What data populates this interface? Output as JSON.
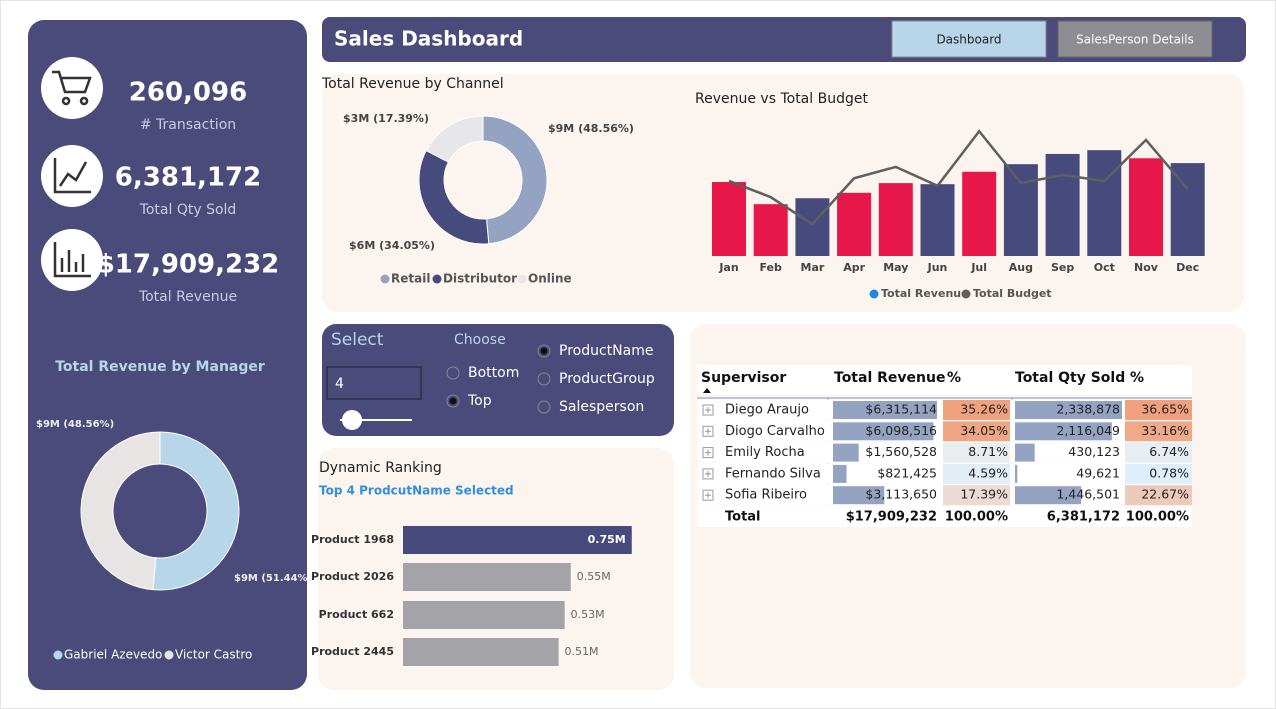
{
  "header": {
    "title": "Sales Dashboard",
    "buttons": [
      "Dashboard",
      "SalesPerson Details"
    ]
  },
  "kpis": [
    {
      "value": "260,096",
      "label": "# Transaction"
    },
    {
      "value": "6,381,172",
      "label": "Total Qty Sold"
    },
    {
      "value": "$17,909,232",
      "label": "Total Revenue"
    }
  ],
  "slicer": {
    "select_label": "Select",
    "input_value": "4",
    "choose_label": "Choose",
    "rank_options": [
      "Bottom",
      "Top"
    ],
    "rank_selected": 1,
    "field_options": [
      "ProductName",
      "ProductGroup",
      "Salesperson"
    ],
    "field_selected": 0
  },
  "table": {
    "columns": [
      "Supervisor",
      "Total Revenue",
      "%",
      "Total Qty Sold",
      "%"
    ],
    "rows": [
      {
        "supervisor": "Diego Araujo",
        "revenue": {
          "value": 6315114,
          "label": "$6,315,114"
        },
        "revenue_pct": {
          "value": 35.26,
          "label": "35.26%"
        },
        "qty": {
          "value": 2338878,
          "label": "2,338,878"
        },
        "qty_pct": {
          "value": 36.65,
          "label": "36.65%"
        }
      },
      {
        "supervisor": "Diogo Carvalho",
        "revenue": {
          "value": 6098516,
          "label": "$6,098,516"
        },
        "revenue_pct": {
          "value": 34.05,
          "label": "34.05%"
        },
        "qty": {
          "value": 2116049,
          "label": "2,116,049"
        },
        "qty_pct": {
          "value": 33.16,
          "label": "33.16%"
        }
      },
      {
        "supervisor": "Emily Rocha",
        "revenue": {
          "value": 1560528,
          "label": "$1,560,528"
        },
        "revenue_pct": {
          "value": 8.71,
          "label": "8.71%"
        },
        "qty": {
          "value": 430123,
          "label": "430,123"
        },
        "qty_pct": {
          "value": 6.74,
          "label": "6.74%"
        }
      },
      {
        "supervisor": "Fernando Silva",
        "revenue": {
          "value": 821425,
          "label": "$821,425"
        },
        "revenue_pct": {
          "value": 4.59,
          "label": "4.59%"
        },
        "qty": {
          "value": 49621,
          "label": "49,621"
        },
        "qty_pct": {
          "value": 0.78,
          "label": "0.78%"
        }
      },
      {
        "supervisor": "Sofia Ribeiro",
        "revenue": {
          "value": 3113650,
          "label": "$3,113,650"
        },
        "revenue_pct": {
          "value": 17.39,
          "label": "17.39%"
        },
        "qty": {
          "value": 1446501,
          "label": "1,446,501"
        },
        "qty_pct": {
          "value": 22.67,
          "label": "22.67%"
        }
      }
    ],
    "total": {
      "supervisor": "Total",
      "revenue": "$17,909,232",
      "revenue_pct": "100.00%",
      "qty": "6,381,172",
      "qty_pct": "100.00%"
    }
  },
  "chart_data": [
    {
      "type": "pie",
      "title": "Total Revenue by Channel",
      "categories": [
        "Retail",
        "Distributor",
        "Online"
      ],
      "values": [
        48.56,
        34.05,
        17.39
      ],
      "value_labels": [
        "$9M (48.56%)",
        "$6M (34.05%)",
        "$3M (17.39%)"
      ],
      "colors": [
        "#94a3c2",
        "#464a7c",
        "#e7e7e9"
      ]
    },
    {
      "type": "bar_line",
      "title": "Revenue vs Total Budget",
      "categories": [
        "Jan",
        "Feb",
        "Mar",
        "Apr",
        "May",
        "Jun",
        "Jul",
        "Aug",
        "Sep",
        "Oct",
        "Nov",
        "Dec"
      ],
      "series": [
        {
          "name": "Total Revenue",
          "color": "#1e88e5",
          "values": [
            1.37,
            0.96,
            1.07,
            1.17,
            1.35,
            1.33,
            1.56,
            1.7,
            1.89,
            1.96,
            1.81,
            1.72
          ],
          "bar_colors": [
            "#e8174a",
            "#e8174a",
            "#464a7c",
            "#e8174a",
            "#e8174a",
            "#464a7c",
            "#e8174a",
            "#464a7c",
            "#464a7c",
            "#464a7c",
            "#e8174a",
            "#464a7c"
          ]
        },
        {
          "name": "Total Budget",
          "color": "#5f5f5f",
          "values": [
            1.39,
            1.09,
            0.59,
            1.44,
            1.65,
            1.3,
            2.31,
            1.35,
            1.5,
            1.39,
            2.15,
            1.24
          ]
        }
      ]
    },
    {
      "type": "pie",
      "title": "Total Revenue by Manager",
      "categories": [
        "Gabriel Azevedo",
        "Victor Castro"
      ],
      "values": [
        51.44,
        48.56
      ],
      "value_labels": [
        "$9M (51.44%)",
        "$9M (48.56%)"
      ],
      "colors": [
        "#b8d6ea",
        "#e8e4e4"
      ]
    },
    {
      "type": "bar",
      "orientation": "horizontal",
      "title": "Dynamic Ranking",
      "subtitle": "Top 4 ProdcutName Selected",
      "categories": [
        "Product 1968",
        "Product 2026",
        "Product 662",
        "Product 2445"
      ],
      "values": [
        0.75,
        0.55,
        0.53,
        0.51
      ],
      "value_labels": [
        "0.75M",
        "0.55M",
        "0.53M",
        "0.51M"
      ],
      "colors": [
        "#464a7c",
        "#a3a3a8",
        "#a3a3a8",
        "#a3a3a8"
      ]
    }
  ]
}
